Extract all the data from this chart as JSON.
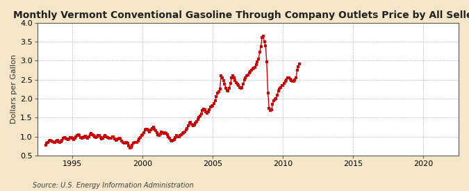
{
  "title": "Monthly Vermont Conventional Gasoline Through Company Outlets Price by All Sellers",
  "ylabel": "Dollars per Gallon",
  "source": "Source: U.S. Energy Information Administration",
  "background_color": "#f5e6c8",
  "plot_background_color": "#ffffff",
  "line_color": "#cc0000",
  "marker_color": "#cc0000",
  "marker_size": 3.5,
  "line_width": 1.0,
  "ylim": [
    0.5,
    4.0
  ],
  "xlim_start": 1992.5,
  "xlim_end": 2022.5,
  "yticks": [
    0.5,
    1.0,
    1.5,
    2.0,
    2.5,
    3.0,
    3.5,
    4.0
  ],
  "xticks": [
    1995,
    2000,
    2005,
    2010,
    2015,
    2020
  ],
  "title_fontsize": 10,
  "ylabel_fontsize": 8,
  "tick_fontsize": 8,
  "source_fontsize": 7,
  "data": [
    [
      1993.08,
      0.78
    ],
    [
      1993.17,
      0.83
    ],
    [
      1993.25,
      0.85
    ],
    [
      1993.33,
      0.88
    ],
    [
      1993.42,
      0.9
    ],
    [
      1993.5,
      0.88
    ],
    [
      1993.58,
      0.86
    ],
    [
      1993.67,
      0.85
    ],
    [
      1993.75,
      0.85
    ],
    [
      1993.83,
      0.89
    ],
    [
      1993.92,
      0.9
    ],
    [
      1994.0,
      0.86
    ],
    [
      1994.08,
      0.84
    ],
    [
      1994.17,
      0.87
    ],
    [
      1994.25,
      0.9
    ],
    [
      1994.33,
      0.95
    ],
    [
      1994.42,
      0.98
    ],
    [
      1994.5,
      0.95
    ],
    [
      1994.58,
      0.93
    ],
    [
      1994.67,
      0.91
    ],
    [
      1994.75,
      0.93
    ],
    [
      1994.83,
      0.97
    ],
    [
      1994.92,
      0.98
    ],
    [
      1995.0,
      0.95
    ],
    [
      1995.08,
      0.92
    ],
    [
      1995.17,
      0.95
    ],
    [
      1995.25,
      1.0
    ],
    [
      1995.33,
      1.03
    ],
    [
      1995.42,
      1.05
    ],
    [
      1995.5,
      1.02
    ],
    [
      1995.58,
      0.98
    ],
    [
      1995.67,
      0.96
    ],
    [
      1995.75,
      0.98
    ],
    [
      1995.83,
      1.0
    ],
    [
      1995.92,
      1.01
    ],
    [
      1996.0,
      0.98
    ],
    [
      1996.08,
      0.96
    ],
    [
      1996.17,
      1.0
    ],
    [
      1996.25,
      1.05
    ],
    [
      1996.33,
      1.08
    ],
    [
      1996.42,
      1.05
    ],
    [
      1996.5,
      1.02
    ],
    [
      1996.58,
      1.0
    ],
    [
      1996.67,
      0.98
    ],
    [
      1996.75,
      0.99
    ],
    [
      1996.83,
      1.02
    ],
    [
      1996.92,
      1.03
    ],
    [
      1997.0,
      0.98
    ],
    [
      1997.08,
      0.94
    ],
    [
      1997.17,
      0.96
    ],
    [
      1997.25,
      1.0
    ],
    [
      1997.33,
      1.02
    ],
    [
      1997.42,
      1.0
    ],
    [
      1997.5,
      0.98
    ],
    [
      1997.58,
      0.96
    ],
    [
      1997.67,
      0.95
    ],
    [
      1997.75,
      0.96
    ],
    [
      1997.83,
      0.99
    ],
    [
      1997.92,
      0.99
    ],
    [
      1998.0,
      0.94
    ],
    [
      1998.08,
      0.9
    ],
    [
      1998.17,
      0.92
    ],
    [
      1998.25,
      0.94
    ],
    [
      1998.33,
      0.96
    ],
    [
      1998.42,
      0.93
    ],
    [
      1998.5,
      0.88
    ],
    [
      1998.58,
      0.84
    ],
    [
      1998.67,
      0.82
    ],
    [
      1998.75,
      0.82
    ],
    [
      1998.83,
      0.84
    ],
    [
      1998.92,
      0.82
    ],
    [
      1999.0,
      0.75
    ],
    [
      1999.08,
      0.7
    ],
    [
      1999.17,
      0.72
    ],
    [
      1999.25,
      0.78
    ],
    [
      1999.33,
      0.82
    ],
    [
      1999.42,
      0.85
    ],
    [
      1999.5,
      0.84
    ],
    [
      1999.58,
      0.85
    ],
    [
      1999.67,
      0.88
    ],
    [
      1999.75,
      0.93
    ],
    [
      1999.83,
      0.98
    ],
    [
      1999.92,
      1.02
    ],
    [
      2000.0,
      1.05
    ],
    [
      2000.08,
      1.1
    ],
    [
      2000.17,
      1.18
    ],
    [
      2000.25,
      1.2
    ],
    [
      2000.33,
      1.2
    ],
    [
      2000.42,
      1.16
    ],
    [
      2000.5,
      1.12
    ],
    [
      2000.58,
      1.18
    ],
    [
      2000.67,
      1.22
    ],
    [
      2000.75,
      1.25
    ],
    [
      2000.83,
      1.2
    ],
    [
      2000.92,
      1.15
    ],
    [
      2001.0,
      1.1
    ],
    [
      2001.08,
      1.05
    ],
    [
      2001.17,
      1.02
    ],
    [
      2001.25,
      1.06
    ],
    [
      2001.33,
      1.12
    ],
    [
      2001.42,
      1.1
    ],
    [
      2001.5,
      1.08
    ],
    [
      2001.58,
      1.1
    ],
    [
      2001.67,
      1.08
    ],
    [
      2001.75,
      1.05
    ],
    [
      2001.83,
      1.0
    ],
    [
      2001.92,
      0.95
    ],
    [
      2002.0,
      0.9
    ],
    [
      2002.08,
      0.88
    ],
    [
      2002.17,
      0.9
    ],
    [
      2002.25,
      0.92
    ],
    [
      2002.33,
      0.98
    ],
    [
      2002.42,
      1.02
    ],
    [
      2002.5,
      1.0
    ],
    [
      2002.58,
      1.0
    ],
    [
      2002.67,
      1.02
    ],
    [
      2002.75,
      1.05
    ],
    [
      2002.83,
      1.08
    ],
    [
      2002.92,
      1.1
    ],
    [
      2003.0,
      1.12
    ],
    [
      2003.08,
      1.18
    ],
    [
      2003.17,
      1.22
    ],
    [
      2003.25,
      1.28
    ],
    [
      2003.33,
      1.35
    ],
    [
      2003.42,
      1.38
    ],
    [
      2003.5,
      1.32
    ],
    [
      2003.58,
      1.28
    ],
    [
      2003.67,
      1.3
    ],
    [
      2003.75,
      1.35
    ],
    [
      2003.83,
      1.4
    ],
    [
      2003.92,
      1.45
    ],
    [
      2004.0,
      1.5
    ],
    [
      2004.08,
      1.55
    ],
    [
      2004.17,
      1.6
    ],
    [
      2004.25,
      1.68
    ],
    [
      2004.33,
      1.72
    ],
    [
      2004.42,
      1.7
    ],
    [
      2004.5,
      1.65
    ],
    [
      2004.58,
      1.62
    ],
    [
      2004.67,
      1.65
    ],
    [
      2004.75,
      1.7
    ],
    [
      2004.83,
      1.78
    ],
    [
      2004.92,
      1.8
    ],
    [
      2005.0,
      1.82
    ],
    [
      2005.08,
      1.88
    ],
    [
      2005.17,
      1.95
    ],
    [
      2005.25,
      2.05
    ],
    [
      2005.33,
      2.15
    ],
    [
      2005.42,
      2.18
    ],
    [
      2005.5,
      2.25
    ],
    [
      2005.58,
      2.6
    ],
    [
      2005.67,
      2.55
    ],
    [
      2005.75,
      2.48
    ],
    [
      2005.83,
      2.38
    ],
    [
      2005.92,
      2.28
    ],
    [
      2006.0,
      2.22
    ],
    [
      2006.08,
      2.2
    ],
    [
      2006.17,
      2.28
    ],
    [
      2006.25,
      2.4
    ],
    [
      2006.33,
      2.55
    ],
    [
      2006.42,
      2.6
    ],
    [
      2006.5,
      2.55
    ],
    [
      2006.58,
      2.48
    ],
    [
      2006.67,
      2.42
    ],
    [
      2006.75,
      2.38
    ],
    [
      2006.83,
      2.35
    ],
    [
      2006.92,
      2.3
    ],
    [
      2007.0,
      2.28
    ],
    [
      2007.08,
      2.3
    ],
    [
      2007.17,
      2.38
    ],
    [
      2007.25,
      2.5
    ],
    [
      2007.33,
      2.55
    ],
    [
      2007.42,
      2.6
    ],
    [
      2007.5,
      2.62
    ],
    [
      2007.58,
      2.68
    ],
    [
      2007.67,
      2.72
    ],
    [
      2007.75,
      2.75
    ],
    [
      2007.83,
      2.78
    ],
    [
      2007.92,
      2.8
    ],
    [
      2008.0,
      2.82
    ],
    [
      2008.08,
      2.9
    ],
    [
      2008.17,
      2.98
    ],
    [
      2008.25,
      3.05
    ],
    [
      2008.33,
      3.22
    ],
    [
      2008.42,
      3.38
    ],
    [
      2008.5,
      3.62
    ],
    [
      2008.58,
      3.65
    ],
    [
      2008.67,
      3.5
    ],
    [
      2008.75,
      3.4
    ],
    [
      2008.83,
      2.98
    ],
    [
      2008.92,
      2.15
    ],
    [
      2009.0,
      1.75
    ],
    [
      2009.08,
      1.68
    ],
    [
      2009.17,
      1.7
    ],
    [
      2009.25,
      1.85
    ],
    [
      2009.33,
      1.95
    ],
    [
      2009.42,
      1.98
    ],
    [
      2009.5,
      2.0
    ],
    [
      2009.58,
      2.1
    ],
    [
      2009.67,
      2.2
    ],
    [
      2009.75,
      2.25
    ],
    [
      2009.83,
      2.3
    ],
    [
      2009.92,
      2.35
    ],
    [
      2010.0,
      2.35
    ],
    [
      2010.08,
      2.4
    ],
    [
      2010.17,
      2.45
    ],
    [
      2010.25,
      2.5
    ],
    [
      2010.33,
      2.55
    ],
    [
      2010.42,
      2.55
    ],
    [
      2010.5,
      2.52
    ],
    [
      2010.58,
      2.48
    ],
    [
      2010.67,
      2.45
    ],
    [
      2010.75,
      2.45
    ],
    [
      2010.83,
      2.5
    ],
    [
      2010.92,
      2.55
    ],
    [
      2011.0,
      2.75
    ],
    [
      2011.08,
      2.85
    ],
    [
      2011.17,
      2.92
    ]
  ]
}
